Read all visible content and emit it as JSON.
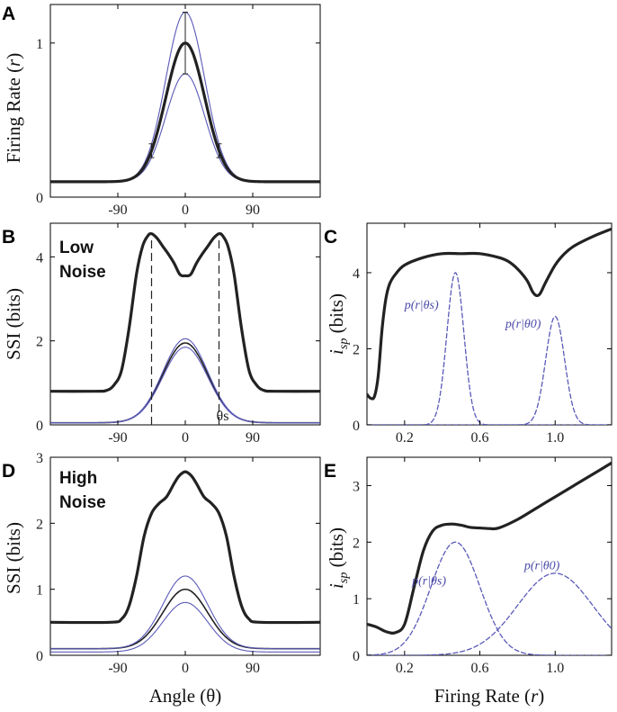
{
  "colors": {
    "black_curve": "#222222",
    "blue_curve": "#5a5ab8",
    "axis": "#000000"
  },
  "chart_data": [
    {
      "id": "A",
      "type": "line",
      "panel_label": "A",
      "ylabel_main": "Firing Rate (",
      "ylabel_var": "r",
      "ylabel_close": ")",
      "xlabel": "",
      "xlim": [
        -180,
        180
      ],
      "ylim": [
        0,
        1.25
      ],
      "xticks": [
        -90,
        0,
        90
      ],
      "yticks": [
        0,
        1
      ],
      "series": [
        {
          "name": "tuning_mean",
          "style": "black-thick",
          "kind": "gauss",
          "base": 0.1,
          "amp": 0.9,
          "sigma": 26
        },
        {
          "name": "tuning_upper",
          "style": "blue-thin",
          "kind": "gauss",
          "base": 0.1,
          "amp": 1.1,
          "sigma": 26
        },
        {
          "name": "tuning_lower",
          "style": "blue-thin",
          "kind": "gauss",
          "base": 0.1,
          "amp": 0.7,
          "sigma": 26
        }
      ],
      "error_bars": [
        -135,
        -90,
        -45,
        0,
        45,
        90,
        135
      ]
    },
    {
      "id": "B",
      "type": "line",
      "panel_label": "B",
      "noise_label": [
        "Low",
        "Noise"
      ],
      "ylabel_main": "SSI (bits)",
      "xlabel": "",
      "xlim": [
        -180,
        180
      ],
      "ylim": [
        0,
        4.8
      ],
      "xticks": [
        -90,
        0,
        90
      ],
      "yticks": [
        0,
        2,
        4
      ],
      "theta_s_label": "θs",
      "theta_s_value": 45,
      "dashed_lines": [
        -45,
        45
      ],
      "series": [
        {
          "name": "SSI_low_noise",
          "style": "black-thick",
          "x": [
            -180,
            -120,
            -105,
            -95,
            -85,
            -75,
            -65,
            -57,
            -50,
            -45,
            -38,
            -30,
            -22,
            -15,
            -8,
            -4,
            0,
            4,
            8,
            15,
            22,
            30,
            38,
            45,
            50,
            57,
            65,
            75,
            85,
            95,
            105,
            120,
            180
          ],
          "y": [
            0.8,
            0.8,
            0.82,
            0.95,
            1.3,
            2.3,
            3.6,
            4.25,
            4.5,
            4.55,
            4.45,
            4.25,
            4.05,
            3.85,
            3.6,
            3.55,
            3.55,
            3.55,
            3.6,
            3.85,
            4.05,
            4.25,
            4.45,
            4.55,
            4.5,
            4.25,
            3.6,
            2.3,
            1.3,
            0.95,
            0.82,
            0.8,
            0.8
          ]
        },
        {
          "name": "tuning_mean_scaled",
          "style": "black-thin",
          "kind": "gauss",
          "base": 0.05,
          "amp": 1.9,
          "sigma": 30
        },
        {
          "name": "tuning_upper_scaled",
          "style": "blue-thin",
          "kind": "gauss",
          "base": 0.05,
          "amp": 2.0,
          "sigma": 30
        },
        {
          "name": "tuning_lower_scaled",
          "style": "blue-thin",
          "kind": "gauss",
          "base": 0.05,
          "amp": 1.8,
          "sigma": 30
        }
      ]
    },
    {
      "id": "C",
      "type": "line",
      "panel_label": "C",
      "ylabel_var": "i",
      "ylabel_sub": "sp",
      "ylabel_rest": " (bits)",
      "xlabel": "",
      "xlim": [
        0,
        1.3
      ],
      "ylim": [
        0,
        5.3
      ],
      "xticks": [
        0.2,
        0.6,
        1.0
      ],
      "xtick_labels": [
        "0.2",
        "0.6",
        "1.0"
      ],
      "yticks": [
        0,
        2,
        4
      ],
      "dist_labels": [
        {
          "text": "p(r|θs)",
          "x": 0.29,
          "y": 3.05
        },
        {
          "text": "p(r|θ0)",
          "x": 0.83,
          "y": 2.55
        }
      ],
      "series": [
        {
          "name": "isp_low_noise",
          "style": "black-thick",
          "x": [
            0,
            0.02,
            0.04,
            0.06,
            0.08,
            0.1,
            0.12,
            0.15,
            0.2,
            0.3,
            0.4,
            0.5,
            0.6,
            0.7,
            0.75,
            0.8,
            0.85,
            0.88,
            0.9,
            0.92,
            0.95,
            1.0,
            1.05,
            1.1,
            1.2,
            1.3
          ],
          "y": [
            0.8,
            0.7,
            0.75,
            1.3,
            2.5,
            3.3,
            3.7,
            3.95,
            4.2,
            4.4,
            4.5,
            4.5,
            4.5,
            4.4,
            4.3,
            4.1,
            3.8,
            3.5,
            3.4,
            3.45,
            3.75,
            4.2,
            4.5,
            4.7,
            4.95,
            5.15
          ]
        },
        {
          "name": "p_r_theta_s",
          "style": "blue-dashed",
          "kind": "gauss",
          "base": 0,
          "amp": 4.0,
          "mu": 0.47,
          "sigma": 0.045
        },
        {
          "name": "p_r_theta_0",
          "style": "blue-dashed",
          "kind": "gauss",
          "base": 0,
          "amp": 2.85,
          "mu": 1.0,
          "sigma": 0.05
        }
      ]
    },
    {
      "id": "D",
      "type": "line",
      "panel_label": "D",
      "noise_label": [
        "High",
        "Noise"
      ],
      "ylabel_main": "SSI (bits)",
      "xlabel_main": "Angle (θ)",
      "xlim": [
        -180,
        180
      ],
      "ylim": [
        0,
        3.0
      ],
      "xticks": [
        -90,
        0,
        90
      ],
      "yticks": [
        0,
        1,
        2,
        3
      ],
      "series": [
        {
          "name": "SSI_high_noise",
          "style": "black-thick",
          "x": [
            -180,
            -100,
            -85,
            -75,
            -65,
            -55,
            -45,
            -35,
            -25,
            -15,
            -8,
            0,
            8,
            15,
            25,
            35,
            45,
            55,
            65,
            75,
            85,
            100,
            180
          ],
          "y": [
            0.5,
            0.5,
            0.55,
            0.75,
            1.2,
            1.8,
            2.15,
            2.3,
            2.4,
            2.6,
            2.72,
            2.78,
            2.72,
            2.6,
            2.4,
            2.3,
            2.15,
            1.8,
            1.2,
            0.75,
            0.55,
            0.5,
            0.5
          ]
        },
        {
          "name": "tuning_mean",
          "style": "black-thin",
          "kind": "gauss",
          "base": 0.1,
          "amp": 0.9,
          "sigma": 30
        },
        {
          "name": "tuning_upper",
          "style": "blue-thin",
          "kind": "gauss",
          "base": 0.1,
          "amp": 1.1,
          "sigma": 30
        },
        {
          "name": "tuning_lower",
          "style": "blue-thin",
          "kind": "gauss",
          "base": 0.05,
          "amp": 0.75,
          "sigma": 30
        }
      ]
    },
    {
      "id": "E",
      "type": "line",
      "panel_label": "E",
      "ylabel_var": "i",
      "ylabel_sub": "sp",
      "ylabel_rest": " (bits)",
      "xlabel_main": "Firing Rate (",
      "xlabel_var": "r",
      "xlabel_close": ")",
      "xlim": [
        0,
        1.3
      ],
      "ylim": [
        0,
        3.5
      ],
      "xticks": [
        0.2,
        0.6,
        1.0
      ],
      "xtick_labels": [
        "0.2",
        "0.6",
        "1.0"
      ],
      "yticks": [
        0,
        1,
        2,
        3
      ],
      "dist_labels": [
        {
          "text": "p(r|θs)",
          "x": 0.33,
          "y": 1.25
        },
        {
          "text": "p(r|θ0)",
          "x": 0.93,
          "y": 1.52
        }
      ],
      "series": [
        {
          "name": "isp_high_noise",
          "style": "black-thick",
          "x": [
            0,
            0.05,
            0.1,
            0.15,
            0.2,
            0.25,
            0.3,
            0.35,
            0.4,
            0.45,
            0.5,
            0.55,
            0.6,
            0.65,
            0.7,
            0.8,
            0.9,
            1.0,
            1.1,
            1.2,
            1.3
          ],
          "y": [
            0.55,
            0.5,
            0.42,
            0.4,
            0.55,
            1.2,
            1.85,
            2.2,
            2.3,
            2.32,
            2.3,
            2.26,
            2.25,
            2.24,
            2.25,
            2.4,
            2.6,
            2.8,
            3.0,
            3.2,
            3.4
          ]
        },
        {
          "name": "p_r_theta_s",
          "style": "blue-dashed",
          "kind": "gauss",
          "base": 0,
          "amp": 2.0,
          "mu": 0.47,
          "sigma": 0.13
        },
        {
          "name": "p_r_theta_0",
          "style": "blue-dashed",
          "kind": "gauss",
          "base": 0,
          "amp": 1.45,
          "mu": 1.0,
          "sigma": 0.2
        }
      ]
    }
  ]
}
